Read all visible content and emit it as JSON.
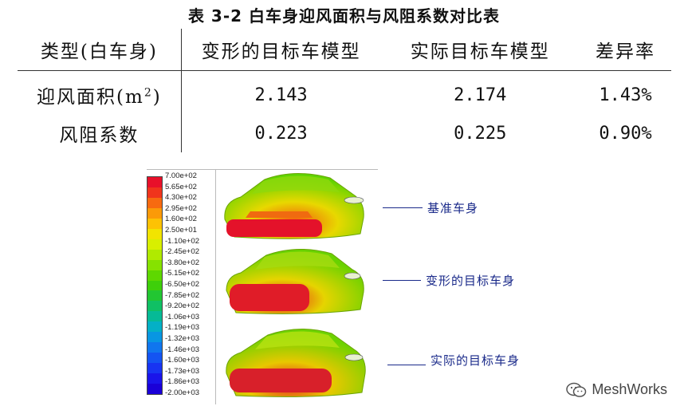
{
  "title": "表 3-2 白车身迎风面积与风阻系数对比表",
  "table": {
    "headers": [
      "类型(白车身)",
      "变形的目标车模型",
      "实际目标车模型",
      "差异率"
    ],
    "rows": [
      {
        "label_text": "迎风面积(m",
        "label_sup": "2",
        "label_close": ")",
        "values": [
          "2.143",
          "2.174",
          "1.43%"
        ]
      },
      {
        "label_text": "风阻系数",
        "values": [
          "0.223",
          "0.225",
          "0.90%"
        ]
      }
    ]
  },
  "legend": {
    "labels": [
      "7.00e+02",
      "5.65e+02",
      "4.30e+02",
      "2.95e+02",
      "1.60e+02",
      "2.50e+01",
      "-1.10e+02",
      "-2.45e+02",
      "-3.80e+02",
      "-5.15e+02",
      "-6.50e+02",
      "-7.85e+02",
      "-9.20e+02",
      "-1.06e+03",
      "-1.19e+03",
      "-1.32e+03",
      "-1.46e+03",
      "-1.60e+03",
      "-1.73e+03",
      "-1.86e+03",
      "-2.00e+03"
    ],
    "colors": [
      "#e8102a",
      "#f0341c",
      "#f76a10",
      "#fb9a08",
      "#fdc204",
      "#f2e400",
      "#d8ef00",
      "#b0ea00",
      "#86e200",
      "#5ed800",
      "#3ecf0a",
      "#22c632",
      "#10c064",
      "#06ba96",
      "#04b0c6",
      "#0896e2",
      "#1076ee",
      "#1454f2",
      "#1834f2",
      "#1a14ea",
      "#1a00d8"
    ]
  },
  "callouts": [
    "基准车身",
    "变形的目标车身",
    "实际的目标车身"
  ],
  "watermark": "MeshWorks"
}
